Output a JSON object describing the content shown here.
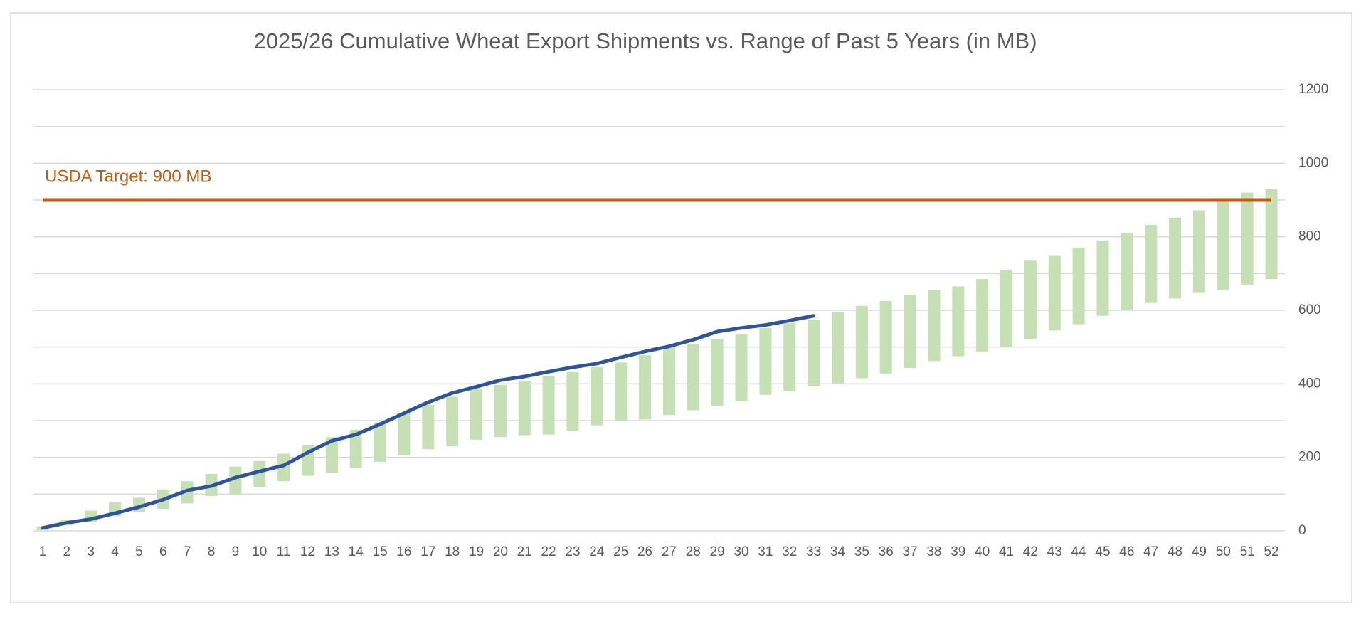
{
  "chart_data": {
    "type": "range_bar_line",
    "title": "2025/26 Cumulative Wheat Export Shipments vs. Range of Past 5 Years (in MB)",
    "categories": [
      "1",
      "2",
      "3",
      "4",
      "5",
      "6",
      "7",
      "8",
      "9",
      "10",
      "11",
      "12",
      "13",
      "14",
      "15",
      "16",
      "17",
      "18",
      "19",
      "20",
      "21",
      "22",
      "23",
      "24",
      "25",
      "26",
      "27",
      "28",
      "29",
      "30",
      "31",
      "32",
      "33",
      "34",
      "35",
      "36",
      "37",
      "38",
      "39",
      "40",
      "41",
      "42",
      "43",
      "44",
      "45",
      "46",
      "47",
      "48",
      "49",
      "50",
      "51",
      "52"
    ],
    "range_color": "#c5e0b4",
    "range_low": [
      2,
      15,
      25,
      40,
      50,
      60,
      75,
      95,
      100,
      120,
      135,
      150,
      158,
      172,
      188,
      205,
      222,
      230,
      248,
      255,
      260,
      262,
      272,
      287,
      298,
      303,
      315,
      328,
      340,
      352,
      370,
      380,
      393,
      400,
      415,
      428,
      443,
      462,
      475,
      488,
      500,
      522,
      545,
      562,
      585,
      600,
      620,
      632,
      647,
      655,
      670,
      685
    ],
    "range_high": [
      12,
      30,
      55,
      78,
      90,
      113,
      135,
      155,
      175,
      190,
      210,
      232,
      255,
      275,
      295,
      320,
      343,
      365,
      385,
      397,
      408,
      422,
      432,
      445,
      458,
      478,
      500,
      508,
      522,
      535,
      552,
      565,
      575,
      595,
      612,
      625,
      642,
      655,
      665,
      685,
      710,
      735,
      748,
      770,
      790,
      810,
      832,
      852,
      872,
      895,
      920,
      930
    ],
    "line_color": "#2f5597",
    "values": [
      8,
      22,
      32,
      48,
      65,
      85,
      110,
      122,
      145,
      162,
      178,
      213,
      245,
      262,
      290,
      320,
      350,
      375,
      392,
      410,
      420,
      433,
      445,
      455,
      472,
      488,
      502,
      520,
      542,
      552,
      560,
      572,
      585,
      null,
      null,
      null,
      null,
      null,
      null,
      null,
      null,
      null,
      null,
      null,
      null,
      null,
      null,
      null,
      null,
      null,
      null,
      null
    ],
    "target": {
      "value": 900,
      "label": "USDA Target: 900 MB",
      "color": "#c55a11"
    },
    "ylim": [
      0,
      1200
    ],
    "yticks": [
      0,
      200,
      400,
      600,
      800,
      1000,
      1200
    ],
    "y_minor_ticks": [
      100,
      300,
      500,
      700,
      900,
      1100
    ],
    "grid": true,
    "y_axis_side": "right"
  }
}
